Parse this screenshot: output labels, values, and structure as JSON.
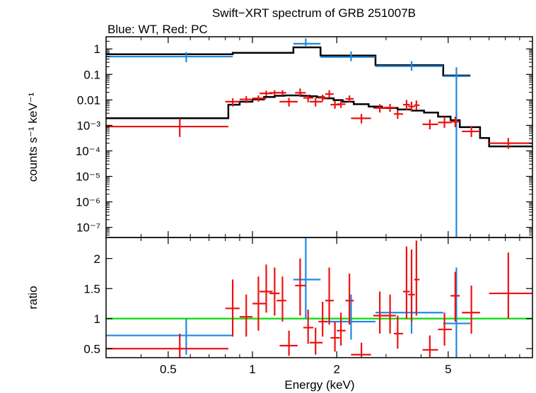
{
  "chart_data": {
    "type": "scatter",
    "title": "Swift−XRT spectrum of GRB 251007B",
    "subtitle": "Blue: WT, Red: PC",
    "xlabel": "Energy (keV)",
    "x_scale": "log",
    "xlim": [
      0.3,
      10
    ],
    "x_ticks": [
      {
        "value": 0.5,
        "label": "0.5"
      },
      {
        "value": 1,
        "label": "1"
      },
      {
        "value": 2,
        "label": "2"
      },
      {
        "value": 5,
        "label": "5"
      }
    ],
    "colors": {
      "wt": "#1f88e0",
      "pc": "#ee1111",
      "model": "#000000",
      "ratio_line": "#22dd22"
    },
    "panels": [
      {
        "name": "spectrum",
        "ylabel": "counts s⁻¹ keV⁻¹",
        "y_scale": "log",
        "ylim": [
          4e-08,
          3
        ],
        "y_ticks": [
          {
            "value": 1,
            "label": "1"
          },
          {
            "value": 0.1,
            "label": "0.1"
          },
          {
            "value": 0.01,
            "label": "0.01"
          },
          {
            "value": 0.001,
            "label": "10⁻³"
          },
          {
            "value": 0.0001,
            "label": "10⁻⁴"
          },
          {
            "value": 1e-05,
            "label": "10⁻⁵"
          },
          {
            "value": 1e-06,
            "label": "10⁻⁶"
          },
          {
            "value": 1e-07,
            "label": "10⁻⁷"
          }
        ],
        "series": [
          {
            "name": "WT data",
            "color_key": "wt",
            "points": [
              {
                "x": 0.58,
                "xlo": 0.3,
                "xhi": 0.85,
                "y": 0.5,
                "ylo": 0.3,
                "yhi": 0.75
              },
              {
                "x": 1.55,
                "xlo": 1.4,
                "xhi": 1.75,
                "y": 1.6,
                "ylo": 1.3,
                "yhi": 2.6
              },
              {
                "x": 2.25,
                "xlo": 1.75,
                "xhi": 2.75,
                "y": 0.48,
                "ylo": 0.33,
                "yhi": 0.8
              },
              {
                "x": 3.7,
                "xlo": 2.75,
                "xhi": 4.8,
                "y": 0.21,
                "ylo": 0.14,
                "yhi": 0.33
              },
              {
                "x": 5.35,
                "xlo": 4.8,
                "xhi": 6.0,
                "y": 0.085,
                "ylo": 1e-09,
                "yhi": 0.19
              }
            ]
          },
          {
            "name": "PC data",
            "color_key": "pc",
            "points": [
              {
                "x": 0.55,
                "xlo": 0.3,
                "xhi": 0.82,
                "y": 0.0009,
                "ylo": 0.00035,
                "yhi": 0.0019
              },
              {
                "x": 0.85,
                "xlo": 0.8,
                "xhi": 0.9,
                "y": 0.0085,
                "ylo": 0.0055,
                "yhi": 0.0115
              },
              {
                "x": 0.95,
                "xlo": 0.9,
                "xhi": 1.0,
                "y": 0.0105,
                "ylo": 0.0075,
                "yhi": 0.014
              },
              {
                "x": 1.05,
                "xlo": 1.0,
                "xhi": 1.12,
                "y": 0.0115,
                "ylo": 0.0085,
                "yhi": 0.015
              },
              {
                "x": 1.12,
                "xlo": 1.06,
                "xhi": 1.18,
                "y": 0.018,
                "ylo": 0.014,
                "yhi": 0.023
              },
              {
                "x": 1.2,
                "xlo": 1.15,
                "xhi": 1.25,
                "y": 0.019,
                "ylo": 0.015,
                "yhi": 0.024
              },
              {
                "x": 1.28,
                "xlo": 1.22,
                "xhi": 1.32,
                "y": 0.019,
                "ylo": 0.015,
                "yhi": 0.024
              },
              {
                "x": 1.35,
                "xlo": 1.25,
                "xhi": 1.45,
                "y": 0.0085,
                "ylo": 0.0055,
                "yhi": 0.012
              },
              {
                "x": 1.48,
                "xlo": 1.42,
                "xhi": 1.55,
                "y": 0.019,
                "ylo": 0.013,
                "yhi": 0.028
              },
              {
                "x": 1.58,
                "xlo": 1.52,
                "xhi": 1.65,
                "y": 0.012,
                "ylo": 0.008,
                "yhi": 0.016
              },
              {
                "x": 1.68,
                "xlo": 1.6,
                "xhi": 1.78,
                "y": 0.0085,
                "ylo": 0.0055,
                "yhi": 0.012
              },
              {
                "x": 1.78,
                "xlo": 1.72,
                "xhi": 1.85,
                "y": 0.012,
                "ylo": 0.009,
                "yhi": 0.016
              },
              {
                "x": 1.88,
                "xlo": 1.82,
                "xhi": 1.95,
                "y": 0.017,
                "ylo": 0.012,
                "yhi": 0.024
              },
              {
                "x": 1.97,
                "xlo": 1.9,
                "xhi": 2.05,
                "y": 0.0065,
                "ylo": 0.0045,
                "yhi": 0.009
              },
              {
                "x": 2.07,
                "xlo": 2.0,
                "xhi": 2.15,
                "y": 0.0068,
                "ylo": 0.0048,
                "yhi": 0.0095
              },
              {
                "x": 2.22,
                "xlo": 2.15,
                "xhi": 2.3,
                "y": 0.011,
                "ylo": 0.008,
                "yhi": 0.015
              },
              {
                "x": 2.45,
                "xlo": 2.25,
                "xhi": 2.65,
                "y": 0.0019,
                "ylo": 0.0012,
                "yhi": 0.0028
              },
              {
                "x": 2.85,
                "xlo": 2.7,
                "xhi": 3.0,
                "y": 0.0048,
                "ylo": 0.0032,
                "yhi": 0.0068
              },
              {
                "x": 3.1,
                "xlo": 2.95,
                "xhi": 3.25,
                "y": 0.005,
                "ylo": 0.0034,
                "yhi": 0.007
              },
              {
                "x": 3.3,
                "xlo": 3.2,
                "xhi": 3.45,
                "y": 0.0028,
                "ylo": 0.0018,
                "yhi": 0.0041
              },
              {
                "x": 3.55,
                "xlo": 3.45,
                "xhi": 3.65,
                "y": 0.0065,
                "ylo": 0.004,
                "yhi": 0.01
              },
              {
                "x": 3.7,
                "xlo": 3.6,
                "xhi": 3.8,
                "y": 0.0055,
                "ylo": 0.0035,
                "yhi": 0.0085
              },
              {
                "x": 3.85,
                "xlo": 3.78,
                "xhi": 3.95,
                "y": 0.0062,
                "ylo": 0.004,
                "yhi": 0.0095
              },
              {
                "x": 4.3,
                "xlo": 4.05,
                "xhi": 4.6,
                "y": 0.0011,
                "ylo": 0.0007,
                "yhi": 0.0017
              },
              {
                "x": 4.85,
                "xlo": 4.6,
                "xhi": 5.15,
                "y": 0.0013,
                "ylo": 0.0008,
                "yhi": 0.002
              },
              {
                "x": 5.3,
                "xlo": 5.1,
                "xhi": 5.5,
                "y": 0.0014,
                "ylo": 0.00085,
                "yhi": 0.0022
              },
              {
                "x": 6.05,
                "xlo": 5.6,
                "xhi": 6.5,
                "y": 0.00058,
                "ylo": 0.00035,
                "yhi": 0.00095
              },
              {
                "x": 8.2,
                "xlo": 7.0,
                "xhi": 10.0,
                "y": 0.0002,
                "ylo": 0.00012,
                "yhi": 0.00032
              }
            ]
          }
        ],
        "models": [
          {
            "name": "WT model",
            "color_key": "model",
            "steps": [
              [
                0.3,
                0.62
              ],
              [
                0.85,
                0.7
              ],
              [
                1.4,
                1.15
              ],
              [
                1.75,
                0.55
              ],
              [
                2.75,
                0.23
              ],
              [
                4.8,
                0.09
              ],
              [
                6.0,
                0.09
              ]
            ]
          },
          {
            "name": "PC model",
            "color_key": "model",
            "steps": [
              [
                0.3,
                0.0019
              ],
              [
                0.82,
                0.0065
              ],
              [
                0.9,
                0.0085
              ],
              [
                1.0,
                0.0105
              ],
              [
                1.1,
                0.013
              ],
              [
                1.2,
                0.0145
              ],
              [
                1.3,
                0.015
              ],
              [
                1.4,
                0.015
              ],
              [
                1.5,
                0.0145
              ],
              [
                1.6,
                0.014
              ],
              [
                1.7,
                0.0128
              ],
              [
                1.8,
                0.0115
              ],
              [
                1.95,
                0.0098
              ],
              [
                2.1,
                0.0085
              ],
              [
                2.3,
                0.0068
              ],
              [
                2.6,
                0.0055
              ],
              [
                2.9,
                0.0048
              ],
              [
                3.3,
                0.0042
              ],
              [
                3.7,
                0.0038
              ],
              [
                4.1,
                0.0032
              ],
              [
                4.6,
                0.0022
              ],
              [
                5.1,
                0.0016
              ],
              [
                5.5,
                0.00085
              ],
              [
                6.5,
                0.00032
              ],
              [
                7.0,
                0.00015
              ],
              [
                10.0,
                0.00015
              ]
            ]
          }
        ]
      },
      {
        "name": "ratio",
        "ylabel": "ratio",
        "y_scale": "linear",
        "ylim": [
          0.35,
          2.35
        ],
        "y_ticks": [
          {
            "value": 0.5,
            "label": "0.5"
          },
          {
            "value": 1,
            "label": "1"
          },
          {
            "value": 1.5,
            "label": "1.5"
          },
          {
            "value": 2,
            "label": "2"
          }
        ],
        "reference_line": 1,
        "series": [
          {
            "name": "WT ratio",
            "color_key": "wt",
            "points": [
              {
                "x": 0.58,
                "xlo": 0.3,
                "xhi": 0.85,
                "y": 0.72,
                "ylo": 0.4,
                "yhi": 1.0
              },
              {
                "x": 1.55,
                "xlo": 1.4,
                "xhi": 1.75,
                "y": 1.65,
                "ylo": 1.0,
                "yhi": 2.35
              },
              {
                "x": 2.25,
                "xlo": 1.75,
                "xhi": 2.75,
                "y": 0.95,
                "ylo": 0.65,
                "yhi": 1.4
              },
              {
                "x": 3.7,
                "xlo": 2.75,
                "xhi": 4.8,
                "y": 1.1,
                "ylo": 0.75,
                "yhi": 1.55
              },
              {
                "x": 5.35,
                "xlo": 4.8,
                "xhi": 6.0,
                "y": 0.92,
                "ylo": 0.35,
                "yhi": 1.85
              }
            ]
          },
          {
            "name": "PC ratio",
            "color_key": "pc",
            "points": [
              {
                "x": 0.55,
                "xlo": 0.3,
                "xhi": 0.82,
                "y": 0.5,
                "ylo": 0.35,
                "yhi": 0.75
              },
              {
                "x": 0.85,
                "xlo": 0.8,
                "xhi": 0.9,
                "y": 1.17,
                "ylo": 0.7,
                "yhi": 1.65
              },
              {
                "x": 0.95,
                "xlo": 0.9,
                "xhi": 1.0,
                "y": 1.03,
                "ylo": 0.7,
                "yhi": 1.4
              },
              {
                "x": 1.05,
                "xlo": 1.0,
                "xhi": 1.12,
                "y": 1.25,
                "ylo": 0.8,
                "yhi": 1.7
              },
              {
                "x": 1.12,
                "xlo": 1.06,
                "xhi": 1.18,
                "y": 1.45,
                "ylo": 1.1,
                "yhi": 1.9
              },
              {
                "x": 1.2,
                "xlo": 1.15,
                "xhi": 1.25,
                "y": 1.42,
                "ylo": 1.05,
                "yhi": 1.85
              },
              {
                "x": 1.28,
                "xlo": 1.22,
                "xhi": 1.32,
                "y": 1.3,
                "ylo": 0.95,
                "yhi": 1.7
              },
              {
                "x": 1.35,
                "xlo": 1.25,
                "xhi": 1.45,
                "y": 0.55,
                "ylo": 0.38,
                "yhi": 0.8
              },
              {
                "x": 1.48,
                "xlo": 1.42,
                "xhi": 1.55,
                "y": 1.55,
                "ylo": 1.05,
                "yhi": 2.0
              },
              {
                "x": 1.58,
                "xlo": 1.52,
                "xhi": 1.65,
                "y": 0.85,
                "ylo": 0.58,
                "yhi": 1.15
              },
              {
                "x": 1.68,
                "xlo": 1.6,
                "xhi": 1.78,
                "y": 0.6,
                "ylo": 0.4,
                "yhi": 0.85
              },
              {
                "x": 1.78,
                "xlo": 1.72,
                "xhi": 1.85,
                "y": 0.95,
                "ylo": 0.7,
                "yhi": 1.28
              },
              {
                "x": 1.88,
                "xlo": 1.82,
                "xhi": 1.95,
                "y": 1.3,
                "ylo": 0.9,
                "yhi": 1.85
              },
              {
                "x": 1.97,
                "xlo": 1.9,
                "xhi": 2.05,
                "y": 0.68,
                "ylo": 0.45,
                "yhi": 0.95
              },
              {
                "x": 2.07,
                "xlo": 2.0,
                "xhi": 2.15,
                "y": 0.8,
                "ylo": 0.55,
                "yhi": 1.1
              },
              {
                "x": 2.22,
                "xlo": 2.15,
                "xhi": 2.3,
                "y": 1.3,
                "ylo": 0.9,
                "yhi": 1.75
              },
              {
                "x": 2.45,
                "xlo": 2.25,
                "xhi": 2.65,
                "y": 0.4,
                "ylo": 0.36,
                "yhi": 0.6
              },
              {
                "x": 2.85,
                "xlo": 2.7,
                "xhi": 3.0,
                "y": 1.05,
                "ylo": 0.75,
                "yhi": 1.45
              },
              {
                "x": 3.1,
                "xlo": 2.95,
                "xhi": 3.25,
                "y": 1.05,
                "ylo": 0.75,
                "yhi": 1.4
              },
              {
                "x": 3.3,
                "xlo": 3.2,
                "xhi": 3.45,
                "y": 0.75,
                "ylo": 0.5,
                "yhi": 1.05
              },
              {
                "x": 3.55,
                "xlo": 3.45,
                "xhi": 3.65,
                "y": 1.45,
                "ylo": 1.0,
                "yhi": 2.2
              },
              {
                "x": 3.7,
                "xlo": 3.6,
                "xhi": 3.8,
                "y": 1.4,
                "ylo": 0.95,
                "yhi": 2.15
              },
              {
                "x": 3.85,
                "xlo": 3.78,
                "xhi": 3.95,
                "y": 1.65,
                "ylo": 1.05,
                "yhi": 2.3
              },
              {
                "x": 4.3,
                "xlo": 4.05,
                "xhi": 4.6,
                "y": 0.48,
                "ylo": 0.36,
                "yhi": 0.72
              },
              {
                "x": 4.85,
                "xlo": 4.6,
                "xhi": 5.15,
                "y": 0.82,
                "ylo": 0.55,
                "yhi": 1.1
              },
              {
                "x": 5.3,
                "xlo": 5.1,
                "xhi": 5.5,
                "y": 1.38,
                "ylo": 0.95,
                "yhi": 1.78
              },
              {
                "x": 6.05,
                "xlo": 5.6,
                "xhi": 6.5,
                "y": 1.1,
                "ylo": 0.75,
                "yhi": 1.55
              },
              {
                "x": 8.2,
                "xlo": 7.0,
                "xhi": 10.0,
                "y": 1.42,
                "ylo": 1.0,
                "yhi": 2.1
              }
            ]
          }
        ]
      }
    ]
  }
}
